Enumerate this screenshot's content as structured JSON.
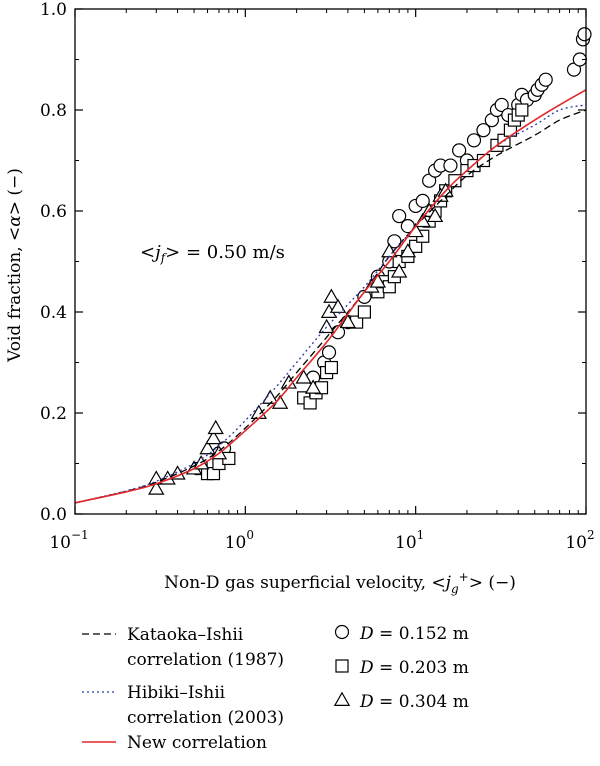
{
  "chart_data": {
    "type": "scatter",
    "xscale": "log",
    "xlim": [
      0.1,
      100
    ],
    "ylim": [
      0.0,
      1.0
    ],
    "x_ticks": [
      0.1,
      1,
      10,
      100
    ],
    "x_tick_labels": [
      {
        "base": "10",
        "exp": "−1"
      },
      {
        "base": "10",
        "exp": "0"
      },
      {
        "base": "10",
        "exp": "1"
      },
      {
        "base": "10",
        "exp": "2"
      }
    ],
    "y_ticks": [
      0.0,
      0.2,
      0.4,
      0.6,
      0.8,
      1.0
    ],
    "y_tick_labels": [
      "0.0",
      "0.2",
      "0.4",
      "0.6",
      "0.8",
      "1.0"
    ],
    "xlabel": "Non-D gas superficial velocity, <jg+> (−)",
    "ylabel": "Void fraction, <α> (−)",
    "annotation": "<jf> = 0.50 m/s",
    "grid": false,
    "legend_placement": "below",
    "lines": [
      {
        "name": "Kataoka–Ishii correlation (1987)",
        "style": "dashed",
        "color": "#000000",
        "x": [
          0.1,
          0.2,
          0.3,
          0.5,
          0.7,
          1,
          1.5,
          2,
          3,
          5,
          7,
          10,
          15,
          20,
          30,
          50,
          70,
          100
        ],
        "y": [
          0.022,
          0.045,
          0.063,
          0.095,
          0.125,
          0.17,
          0.23,
          0.28,
          0.35,
          0.44,
          0.51,
          0.57,
          0.63,
          0.67,
          0.71,
          0.75,
          0.78,
          0.8
        ]
      },
      {
        "name": "Hibiki–Ishii correlation (2003)",
        "style": "dotted",
        "color": "#2b3aa8",
        "x": [
          0.1,
          0.2,
          0.3,
          0.5,
          0.7,
          1,
          1.5,
          2,
          3,
          5,
          7,
          10,
          15,
          20,
          30,
          50,
          70,
          100
        ],
        "y": [
          0.022,
          0.046,
          0.065,
          0.1,
          0.135,
          0.185,
          0.25,
          0.3,
          0.37,
          0.45,
          0.51,
          0.57,
          0.64,
          0.68,
          0.73,
          0.77,
          0.8,
          0.81
        ]
      },
      {
        "name": "New correlation",
        "style": "solid",
        "color": "#e3262a",
        "x": [
          0.1,
          0.2,
          0.3,
          0.5,
          0.7,
          1,
          1.5,
          2,
          3,
          5,
          7,
          10,
          15,
          20,
          30,
          50,
          70,
          100
        ],
        "y": [
          0.022,
          0.044,
          0.06,
          0.09,
          0.12,
          0.165,
          0.22,
          0.27,
          0.34,
          0.44,
          0.5,
          0.57,
          0.64,
          0.68,
          0.73,
          0.78,
          0.81,
          0.84
        ]
      }
    ],
    "series": [
      {
        "name": "D = 0.152 m",
        "marker": "circle",
        "points": [
          [
            0.7,
            0.12
          ],
          [
            0.75,
            0.13
          ],
          [
            2.5,
            0.27
          ],
          [
            2.9,
            0.3
          ],
          [
            3.1,
            0.32
          ],
          [
            3.5,
            0.36
          ],
          [
            4.0,
            0.38
          ],
          [
            5.0,
            0.43
          ],
          [
            6.0,
            0.47
          ],
          [
            7.0,
            0.5
          ],
          [
            7.5,
            0.54
          ],
          [
            8.0,
            0.59
          ],
          [
            9.0,
            0.57
          ],
          [
            10.0,
            0.61
          ],
          [
            11.0,
            0.62
          ],
          [
            12.0,
            0.66
          ],
          [
            13.0,
            0.68
          ],
          [
            14.0,
            0.69
          ],
          [
            16.0,
            0.69
          ],
          [
            18.0,
            0.72
          ],
          [
            20.0,
            0.7
          ],
          [
            22.0,
            0.74
          ],
          [
            25.0,
            0.76
          ],
          [
            28.0,
            0.78
          ],
          [
            30.0,
            0.8
          ],
          [
            32.0,
            0.81
          ],
          [
            35.0,
            0.79
          ],
          [
            40.0,
            0.81
          ],
          [
            42.0,
            0.83
          ],
          [
            45.0,
            0.82
          ],
          [
            50.0,
            0.83
          ],
          [
            52.0,
            0.84
          ],
          [
            55.0,
            0.85
          ],
          [
            58.0,
            0.86
          ],
          [
            85.0,
            0.88
          ],
          [
            92.0,
            0.9
          ],
          [
            96.0,
            0.94
          ],
          [
            98.0,
            0.95
          ]
        ]
      },
      {
        "name": "D = 0.203 m",
        "marker": "square",
        "points": [
          [
            0.55,
            0.09
          ],
          [
            0.6,
            0.08
          ],
          [
            0.65,
            0.08
          ],
          [
            0.7,
            0.1
          ],
          [
            0.8,
            0.11
          ],
          [
            2.2,
            0.23
          ],
          [
            2.4,
            0.22
          ],
          [
            2.6,
            0.24
          ],
          [
            2.8,
            0.25
          ],
          [
            3.0,
            0.28
          ],
          [
            3.2,
            0.29
          ],
          [
            4.5,
            0.38
          ],
          [
            5.0,
            0.4
          ],
          [
            6.0,
            0.44
          ],
          [
            6.5,
            0.46
          ],
          [
            7.0,
            0.45
          ],
          [
            7.5,
            0.47
          ],
          [
            8.0,
            0.5
          ],
          [
            9.0,
            0.51
          ],
          [
            10.0,
            0.53
          ],
          [
            11.0,
            0.55
          ],
          [
            12.0,
            0.58
          ],
          [
            13.0,
            0.6
          ],
          [
            14.0,
            0.62
          ],
          [
            15.0,
            0.64
          ],
          [
            17.0,
            0.66
          ],
          [
            20.0,
            0.68
          ],
          [
            22.0,
            0.69
          ],
          [
            25.0,
            0.7
          ],
          [
            30.0,
            0.73
          ],
          [
            33.0,
            0.74
          ],
          [
            36.0,
            0.76
          ],
          [
            38.0,
            0.78
          ],
          [
            40.0,
            0.79
          ],
          [
            42.0,
            0.8
          ]
        ]
      },
      {
        "name": "D = 0.304 m",
        "marker": "triangle",
        "points": [
          [
            0.3,
            0.05
          ],
          [
            0.3,
            0.07
          ],
          [
            0.35,
            0.07
          ],
          [
            0.4,
            0.08
          ],
          [
            0.5,
            0.09
          ],
          [
            0.55,
            0.1
          ],
          [
            0.6,
            0.13
          ],
          [
            0.65,
            0.15
          ],
          [
            0.67,
            0.17
          ],
          [
            0.7,
            0.12
          ],
          [
            1.2,
            0.2
          ],
          [
            1.4,
            0.23
          ],
          [
            1.6,
            0.22
          ],
          [
            1.8,
            0.26
          ],
          [
            2.2,
            0.27
          ],
          [
            2.5,
            0.25
          ],
          [
            3.0,
            0.37
          ],
          [
            3.1,
            0.4
          ],
          [
            3.2,
            0.43
          ],
          [
            3.5,
            0.41
          ],
          [
            4.0,
            0.38
          ],
          [
            5.5,
            0.45
          ],
          [
            6.0,
            0.46
          ],
          [
            7.0,
            0.52
          ],
          [
            8.0,
            0.48
          ],
          [
            9.0,
            0.52
          ],
          [
            10.0,
            0.56
          ],
          [
            11.0,
            0.58
          ],
          [
            12.0,
            0.6
          ],
          [
            13.0,
            0.59
          ],
          [
            14.0,
            0.63
          ],
          [
            15.0,
            0.64
          ]
        ]
      }
    ],
    "legend": {
      "lines": [
        {
          "line1": "Kataoka–Ishii",
          "line2": "correlation (1987)"
        },
        {
          "line1": "Hibiki–Ishii",
          "line2": "correlation (2003)"
        },
        {
          "line1": "New correlation",
          "line2": ""
        }
      ],
      "markers": [
        {
          "label_var": "D",
          "label_rest": " = 0.152 m"
        },
        {
          "label_var": "D",
          "label_rest": " = 0.203 m"
        },
        {
          "label_var": "D",
          "label_rest": " = 0.304 m"
        }
      ]
    }
  }
}
